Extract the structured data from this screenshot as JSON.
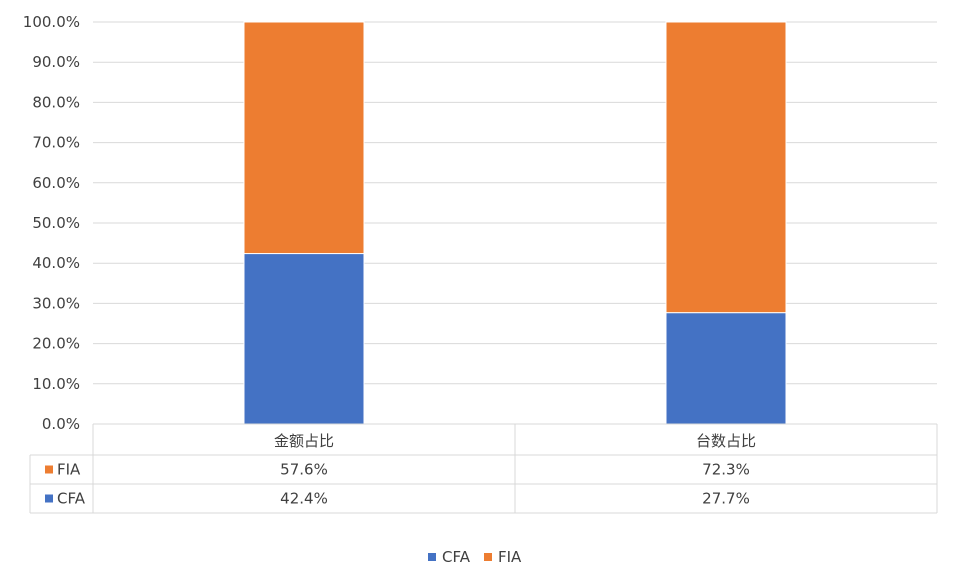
{
  "chart_data": {
    "type": "bar",
    "stacked": true,
    "categories": [
      "金额占比",
      "台数占比"
    ],
    "series": [
      {
        "name": "CFA",
        "values": [
          42.4,
          27.7
        ],
        "color": "#4472C4"
      },
      {
        "name": "FIA",
        "values": [
          57.6,
          72.3
        ],
        "color": "#ED7D31"
      }
    ],
    "ylim": [
      0,
      100
    ],
    "yticks": [
      0,
      10,
      20,
      30,
      40,
      50,
      60,
      70,
      80,
      90,
      100
    ],
    "ytick_labels": [
      "0.0%",
      "10.0%",
      "20.0%",
      "30.0%",
      "40.0%",
      "50.0%",
      "60.0%",
      "70.0%",
      "80.0%",
      "90.0%",
      "100.0%"
    ],
    "grid": true,
    "legend_position": "bottom",
    "data_table": {
      "rows": [
        {
          "series": "FIA",
          "values": [
            "57.6%",
            "72.3%"
          ]
        },
        {
          "series": "CFA",
          "values": [
            "42.4%",
            "27.7%"
          ]
        }
      ]
    },
    "legend": [
      {
        "name": "CFA",
        "color": "#4472C4"
      },
      {
        "name": "FIA",
        "color": "#ED7D31"
      }
    ]
  }
}
